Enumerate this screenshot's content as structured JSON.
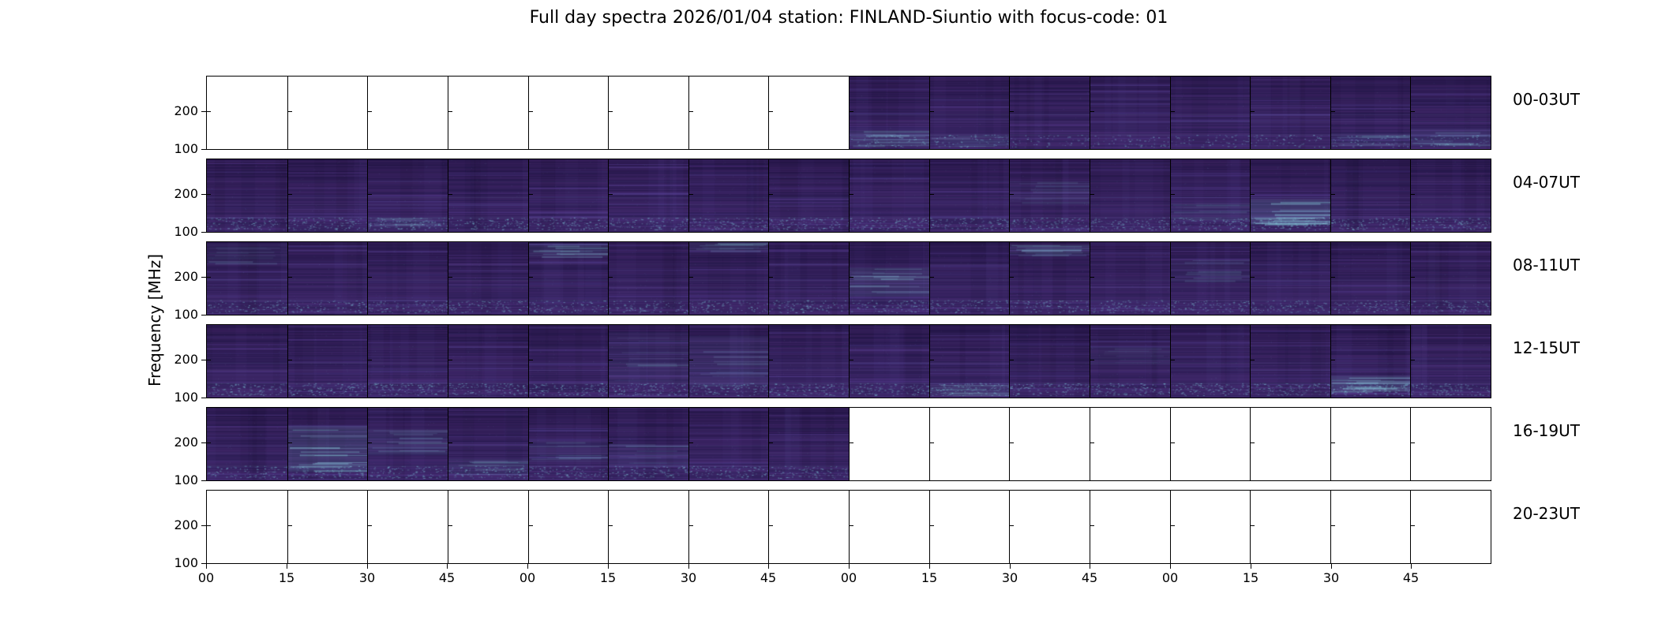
{
  "chart_data": {
    "type": "heatmap",
    "title": "Full day spectra 2026/01/04 station: FINLAND-Siuntio with focus-code: 01",
    "ylabel": "Frequency [MHz]",
    "yticks": [
      "200",
      "100"
    ],
    "xticks": [
      "00",
      "15",
      "30",
      "45",
      "00",
      "15",
      "30",
      "45",
      "00",
      "15",
      "30",
      "45",
      "00",
      "15",
      "30",
      "45"
    ],
    "panels_per_row": 16,
    "minutes_per_panel": 15,
    "rows": [
      {
        "label": "00-03UT",
        "speckle": 0.5,
        "panels": [
          0,
          0,
          0,
          0,
          0,
          0,
          0,
          0,
          1,
          1,
          1,
          1,
          1,
          1,
          1,
          1
        ]
      },
      {
        "label": "04-07UT",
        "speckle": 1.0,
        "panels": [
          1,
          1,
          1,
          1,
          1,
          1,
          1,
          1,
          1,
          1,
          1,
          1,
          1,
          1,
          1,
          1
        ]
      },
      {
        "label": "08-11UT",
        "speckle": 0.85,
        "panels": [
          1,
          1,
          1,
          1,
          1,
          1,
          1,
          1,
          1,
          1,
          1,
          1,
          1,
          1,
          1,
          1
        ]
      },
      {
        "label": "12-15UT",
        "speckle": 1.1,
        "panels": [
          1,
          1,
          1,
          1,
          1,
          1,
          1,
          1,
          1,
          1,
          1,
          1,
          1,
          1,
          1,
          1
        ]
      },
      {
        "label": "16-19UT",
        "speckle": 0.9,
        "panels": [
          1,
          1,
          1,
          1,
          1,
          1,
          1,
          1,
          0,
          0,
          0,
          0,
          0,
          0,
          0,
          0
        ]
      },
      {
        "label": "20-23UT",
        "speckle": 0,
        "panels": [
          0,
          0,
          0,
          0,
          0,
          0,
          0,
          0,
          0,
          0,
          0,
          0,
          0,
          0,
          0,
          0
        ]
      }
    ],
    "bright_regions": [
      {
        "row": 0,
        "panel": 8,
        "y0": 0.74,
        "y1": 0.96,
        "strength": 0.5
      },
      {
        "row": 0,
        "panel": 9,
        "y0": 0.8,
        "y1": 0.96,
        "strength": 0.3
      },
      {
        "row": 0,
        "panel": 14,
        "y0": 0.78,
        "y1": 0.96,
        "strength": 0.3
      },
      {
        "row": 0,
        "panel": 15,
        "y0": 0.72,
        "y1": 0.96,
        "strength": 0.4
      },
      {
        "row": 1,
        "panel": 2,
        "y0": 0.8,
        "y1": 0.95,
        "strength": 0.3
      },
      {
        "row": 1,
        "panel": 10,
        "y0": 0.3,
        "y1": 0.6,
        "strength": 0.25
      },
      {
        "row": 1,
        "panel": 12,
        "y0": 0.6,
        "y1": 0.85,
        "strength": 0.3
      },
      {
        "row": 1,
        "panel": 13,
        "y0": 0.55,
        "y1": 0.9,
        "strength": 0.9
      },
      {
        "row": 2,
        "panel": 0,
        "y0": 0.02,
        "y1": 0.3,
        "strength": 0.3
      },
      {
        "row": 2,
        "panel": 4,
        "y0": 0.02,
        "y1": 0.2,
        "strength": 0.5
      },
      {
        "row": 2,
        "panel": 6,
        "y0": 0.0,
        "y1": 0.12,
        "strength": 0.4
      },
      {
        "row": 2,
        "panel": 8,
        "y0": 0.35,
        "y1": 0.75,
        "strength": 0.55
      },
      {
        "row": 2,
        "panel": 10,
        "y0": 0.03,
        "y1": 0.18,
        "strength": 0.5
      },
      {
        "row": 2,
        "panel": 12,
        "y0": 0.25,
        "y1": 0.55,
        "strength": 0.25
      },
      {
        "row": 3,
        "panel": 5,
        "y0": 0.1,
        "y1": 0.8,
        "strength": 0.3
      },
      {
        "row": 3,
        "panel": 6,
        "y0": 0.15,
        "y1": 0.85,
        "strength": 0.35
      },
      {
        "row": 3,
        "panel": 9,
        "y0": 0.82,
        "y1": 0.97,
        "strength": 0.45
      },
      {
        "row": 3,
        "panel": 11,
        "y0": 0.3,
        "y1": 0.55,
        "strength": 0.2
      },
      {
        "row": 3,
        "panel": 14,
        "y0": 0.7,
        "y1": 0.92,
        "strength": 0.85
      },
      {
        "row": 4,
        "panel": 1,
        "y0": 0.25,
        "y1": 0.88,
        "strength": 0.8
      },
      {
        "row": 4,
        "panel": 2,
        "y0": 0.3,
        "y1": 0.65,
        "strength": 0.4
      },
      {
        "row": 4,
        "panel": 3,
        "y0": 0.7,
        "y1": 0.92,
        "strength": 0.35
      },
      {
        "row": 4,
        "panel": 4,
        "y0": 0.45,
        "y1": 0.75,
        "strength": 0.3
      },
      {
        "row": 4,
        "panel": 5,
        "y0": 0.5,
        "y1": 0.8,
        "strength": 0.3
      }
    ],
    "colors": {
      "background": "#ffffff",
      "frame": "#000000",
      "panel_base_top": "#2c1a50",
      "panel_base_bottom": "#3c2768",
      "streak": "#5a4399",
      "rfi_line": "#8caad2",
      "speckle": "#7cc4d6",
      "highlight": "#8fd8e6"
    }
  }
}
